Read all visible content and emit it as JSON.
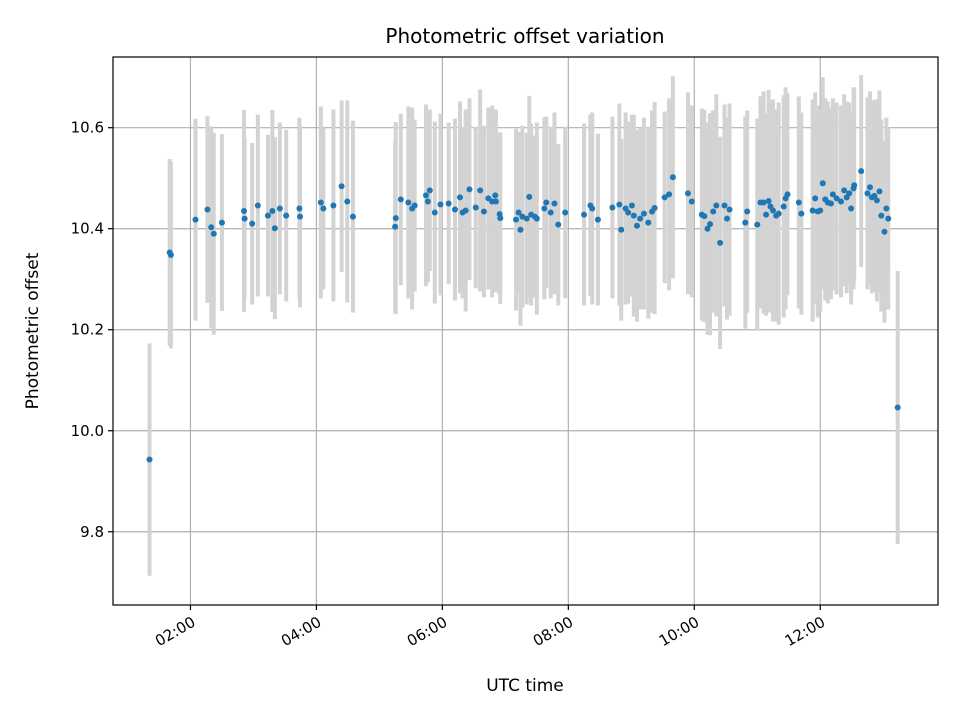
{
  "chart_data": {
    "type": "scatter",
    "title": "Photometric offset variation",
    "xlabel": "UTC time",
    "ylabel": "Photometric offset",
    "xlim": [
      0.77,
      13.87
    ],
    "ylim": [
      9.655,
      10.74
    ],
    "x_ticks": [
      {
        "value": 2,
        "label": "02:00"
      },
      {
        "value": 4,
        "label": "04:00"
      },
      {
        "value": 6,
        "label": "06:00"
      },
      {
        "value": 8,
        "label": "08:00"
      },
      {
        "value": 10,
        "label": "10:00"
      },
      {
        "value": 12,
        "label": "12:00"
      }
    ],
    "y_ticks": [
      {
        "value": 9.8,
        "label": "9.8"
      },
      {
        "value": 10.0,
        "label": "10.0"
      },
      {
        "value": 10.2,
        "label": "10.2"
      },
      {
        "value": 10.4,
        "label": "10.4"
      },
      {
        "value": 10.6,
        "label": "10.6"
      }
    ],
    "grid": true,
    "colors": {
      "marker": "#1f77b4",
      "errorbar": "#d3d3d3",
      "grid": "#b0b0b0",
      "axis": "#000000"
    },
    "series": [
      {
        "name": "offset",
        "x": [
          1.35,
          1.67,
          1.69,
          2.08,
          2.27,
          2.33,
          2.37,
          2.5,
          2.85,
          2.86,
          2.98,
          3.07,
          3.23,
          3.3,
          3.34,
          3.42,
          3.52,
          3.73,
          3.74,
          4.07,
          4.11,
          4.27,
          4.4,
          4.49,
          4.58,
          5.25,
          5.26,
          5.34,
          5.46,
          5.52,
          5.56,
          5.74,
          5.77,
          5.8,
          5.88,
          5.97,
          6.1,
          6.2,
          6.28,
          6.32,
          6.37,
          6.43,
          6.53,
          6.6,
          6.66,
          6.73,
          6.79,
          6.84,
          6.85,
          6.91,
          6.92,
          7.17,
          7.21,
          7.24,
          7.27,
          7.34,
          7.38,
          7.41,
          7.47,
          7.5,
          7.62,
          7.65,
          7.72,
          7.78,
          7.84,
          7.95,
          8.25,
          8.35,
          8.38,
          8.47,
          8.7,
          8.81,
          8.84,
          8.91,
          8.95,
          9.01,
          9.04,
          9.09,
          9.14,
          9.2,
          9.27,
          9.33,
          9.37,
          9.53,
          9.6,
          9.66,
          9.9,
          9.96,
          10.12,
          10.16,
          10.21,
          10.25,
          10.3,
          10.35,
          10.41,
          10.48,
          10.52,
          10.56,
          10.81,
          10.84,
          11.0,
          11.05,
          11.1,
          11.14,
          11.18,
          11.21,
          11.25,
          11.3,
          11.34,
          11.42,
          11.45,
          11.48,
          11.66,
          11.7,
          11.88,
          11.92,
          11.96,
          12.0,
          12.04,
          12.08,
          12.12,
          12.17,
          12.2,
          12.26,
          12.33,
          12.38,
          12.42,
          12.46,
          12.49,
          12.53,
          12.54,
          12.65,
          12.75,
          12.79,
          12.82,
          12.86,
          12.9,
          12.94,
          12.97,
          13.02,
          13.05,
          13.08,
          13.23
        ],
        "y": [
          9.943,
          10.353,
          10.348,
          10.418,
          10.438,
          10.403,
          10.39,
          10.412,
          10.435,
          10.42,
          10.41,
          10.446,
          10.426,
          10.435,
          10.401,
          10.44,
          10.426,
          10.44,
          10.424,
          10.452,
          10.44,
          10.446,
          10.484,
          10.454,
          10.424,
          10.404,
          10.421,
          10.458,
          10.452,
          10.44,
          10.446,
          10.466,
          10.454,
          10.476,
          10.432,
          10.448,
          10.45,
          10.438,
          10.462,
          10.432,
          10.436,
          10.478,
          10.442,
          10.476,
          10.434,
          10.46,
          10.454,
          10.466,
          10.454,
          10.429,
          10.421,
          10.418,
          10.432,
          10.398,
          10.424,
          10.42,
          10.463,
          10.428,
          10.424,
          10.42,
          10.44,
          10.452,
          10.432,
          10.45,
          10.408,
          10.432,
          10.428,
          10.446,
          10.44,
          10.418,
          10.442,
          10.448,
          10.398,
          10.44,
          10.432,
          10.446,
          10.426,
          10.406,
          10.42,
          10.43,
          10.412,
          10.434,
          10.441,
          10.462,
          10.468,
          10.502,
          10.47,
          10.454,
          10.428,
          10.425,
          10.4,
          10.409,
          10.434,
          10.446,
          10.372,
          10.446,
          10.42,
          10.438,
          10.412,
          10.434,
          10.408,
          10.452,
          10.452,
          10.428,
          10.455,
          10.444,
          10.436,
          10.426,
          10.43,
          10.444,
          10.46,
          10.468,
          10.452,
          10.43,
          10.436,
          10.46,
          10.434,
          10.436,
          10.49,
          10.458,
          10.452,
          10.45,
          10.468,
          10.46,
          10.454,
          10.476,
          10.462,
          10.47,
          10.44,
          10.48,
          10.486,
          10.514,
          10.47,
          10.482,
          10.462,
          10.465,
          10.456,
          10.474,
          10.426,
          10.394,
          10.44,
          10.42,
          10.046
        ],
        "err": [
          0.23,
          0.185,
          0.185,
          0.2,
          0.185,
          0.2,
          0.2,
          0.175,
          0.2,
          0.16,
          0.16,
          0.18,
          0.16,
          0.2,
          0.18,
          0.17,
          0.17,
          0.18,
          0.18,
          0.19,
          0.16,
          0.19,
          0.17,
          0.2,
          0.19,
          0.17,
          0.19,
          0.17,
          0.19,
          0.2,
          0.17,
          0.18,
          0.16,
          0.16,
          0.18,
          0.18,
          0.16,
          0.18,
          0.19,
          0.17,
          0.2,
          0.18,
          0.16,
          0.2,
          0.17,
          0.18,
          0.19,
          0.17,
          0.18,
          0.16,
          0.17,
          0.18,
          0.16,
          0.19,
          0.18,
          0.17,
          0.2,
          0.18,
          0.16,
          0.19,
          0.18,
          0.17,
          0.17,
          0.18,
          0.16,
          0.17,
          0.18,
          0.18,
          0.19,
          0.17,
          0.18,
          0.2,
          0.18,
          0.19,
          0.18,
          0.18,
          0.2,
          0.19,
          0.18,
          0.19,
          0.19,
          0.2,
          0.21,
          0.17,
          0.19,
          0.2,
          0.2,
          0.19,
          0.21,
          0.21,
          0.21,
          0.22,
          0.2,
          0.22,
          0.21,
          0.2,
          0.2,
          0.21,
          0.21,
          0.2,
          0.21,
          0.21,
          0.22,
          0.2,
          0.22,
          0.21,
          0.22,
          0.21,
          0.22,
          0.22,
          0.22,
          0.2,
          0.21,
          0.2,
          0.22,
          0.21,
          0.21,
          0.2,
          0.21,
          0.2,
          0.2,
          0.19,
          0.19,
          0.19,
          0.19,
          0.19,
          0.19,
          0.18,
          0.19,
          0.2,
          0.19,
          0.19,
          0.19,
          0.19,
          0.19,
          0.19,
          0.2,
          0.2,
          0.19,
          0.18,
          0.18,
          0.18,
          0.27
        ]
      }
    ]
  }
}
